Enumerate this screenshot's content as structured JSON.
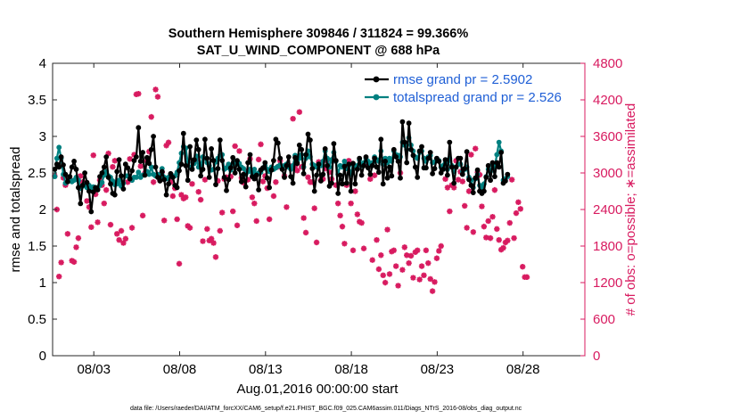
{
  "chart_data": {
    "type": "line",
    "title_line1": "Southern Hemisphere 309846 / 311824 = 99.366%",
    "title_line2": "SAT_U_WIND_COMPONENT @ 688 hPa",
    "xlabel": "Aug.01,2016 00:00:00 start",
    "ylabel_left": "rmse and totalspread",
    "ylabel_right": "# of obs: o=possible; ∗=assimilated",
    "footer": "data file: /Users/raeder/DAI/ATM_forcXX/CAM6_setup/f.e21.FHIST_BGC.f09_025.CAM6assim.011/Diags_NTrS_2016-08/obs_diag_output.nc",
    "x_range_days": [
      0.6,
      31.6
    ],
    "x_ticks": [
      {
        "day": 3,
        "label": "08/03"
      },
      {
        "day": 8,
        "label": "08/08"
      },
      {
        "day": 13,
        "label": "08/13"
      },
      {
        "day": 18,
        "label": "08/18"
      },
      {
        "day": 23,
        "label": "08/23"
      },
      {
        "day": 28,
        "label": "08/28"
      }
    ],
    "y_left_range": [
      0,
      4
    ],
    "y_left_ticks": [
      "0",
      "0.5",
      "1",
      "1.5",
      "2",
      "2.5",
      "3",
      "3.5",
      "4"
    ],
    "y_right_range": [
      0,
      4800
    ],
    "y_right_ticks": [
      "0",
      "600",
      "1200",
      "1800",
      "2400",
      "3000",
      "3600",
      "4200",
      "4800"
    ],
    "colors": {
      "rmse": "#000000",
      "totalspread": "#008080",
      "obs": "#d81b60",
      "legend_text": "#1f5fd6"
    },
    "legend": {
      "position": "top-right",
      "rmse_label": "rmse grand pr = 2.5902",
      "spread_label": "totalspread grand pr = 2.526"
    },
    "series": [
      {
        "name": "rmse",
        "values": [
          2.55,
          2.62,
          2.58,
          2.72,
          2.61,
          2.48,
          2.38,
          2.45,
          2.58,
          2.66,
          2.55,
          2.3,
          2.08,
          2.33,
          2.5,
          2.37,
          2.25,
          1.97,
          2.24,
          2.3,
          2.27,
          2.45,
          2.5,
          2.58,
          2.72,
          2.44,
          2.35,
          2.22,
          2.2,
          2.52,
          2.68,
          2.46,
          2.28,
          2.62,
          2.57,
          2.42,
          2.53,
          2.67,
          2.72,
          3.12,
          2.66,
          2.78,
          2.47,
          2.71,
          2.63,
          2.82,
          3.0,
          2.58,
          2.44,
          2.39,
          2.52,
          2.41,
          2.2,
          2.35,
          2.49,
          2.44,
          2.33,
          2.3,
          2.53,
          2.62,
          3.04,
          2.6,
          2.4,
          2.86,
          2.55,
          2.68,
          2.95,
          2.82,
          2.46,
          2.55,
          2.96,
          2.7,
          2.44,
          2.83,
          2.67,
          2.34,
          2.56,
          2.95,
          2.67,
          2.44,
          2.26,
          2.41,
          2.57,
          2.71,
          2.5,
          2.67,
          2.55,
          2.38,
          2.48,
          2.31,
          2.64,
          2.75,
          2.45,
          2.42,
          2.47,
          2.27,
          2.54,
          2.57,
          2.64,
          2.43,
          2.3,
          2.54,
          2.67,
          2.96,
          2.91,
          2.7,
          2.55,
          2.44,
          2.6,
          2.72,
          2.45,
          2.36,
          2.71,
          2.63,
          2.88,
          2.82,
          2.49,
          2.75,
          3.03,
          2.95,
          2.56,
          2.25,
          2.47,
          2.62,
          2.39,
          2.48,
          2.83,
          2.6,
          2.32,
          2.36,
          2.9,
          2.67,
          2.22,
          2.47,
          2.35,
          2.59,
          2.36,
          2.62,
          2.25,
          2.63,
          2.35,
          2.55,
          2.7,
          2.47,
          2.6,
          2.72,
          2.57,
          2.48,
          2.6,
          2.7,
          2.58,
          2.51,
          2.96,
          2.35,
          2.66,
          2.43,
          2.58,
          2.46,
          2.82,
          2.72,
          2.66,
          2.43,
          3.2,
          2.92,
          2.64,
          3.18,
          2.82,
          2.74,
          2.58,
          2.44,
          2.8,
          2.86,
          2.57,
          2.57,
          2.7,
          2.78,
          2.49,
          2.56,
          2.7,
          2.66,
          2.5,
          2.55,
          2.68,
          2.47,
          2.92,
          2.58,
          2.36,
          2.58,
          2.7,
          2.7,
          2.48,
          2.56,
          2.79,
          2.41,
          2.33,
          2.23,
          2.43,
          2.54,
          2.25,
          2.22,
          2.25,
          2.44,
          2.6,
          2.4,
          2.64,
          2.45,
          2.64,
          2.58,
          2.78,
          2.36,
          2.39,
          2.48
        ]
      },
      {
        "name": "totalspread",
        "values": [
          2.45,
          2.7,
          2.85,
          2.7,
          2.48,
          2.36,
          2.38,
          2.4,
          2.38,
          2.4,
          2.44,
          2.4,
          2.29,
          2.32,
          2.34,
          2.3,
          2.33,
          2.28,
          2.31,
          2.3,
          2.29,
          2.33,
          2.37,
          2.47,
          2.52,
          2.46,
          2.44,
          2.39,
          2.34,
          2.35,
          2.4,
          2.32,
          2.36,
          2.46,
          2.46,
          2.43,
          2.4,
          2.44,
          2.44,
          2.51,
          2.44,
          2.47,
          2.48,
          2.52,
          2.48,
          2.58,
          2.48,
          2.46,
          2.48,
          2.43,
          2.56,
          2.44,
          2.42,
          2.44,
          2.47,
          2.46,
          2.46,
          2.51,
          2.64,
          2.77,
          2.86,
          2.84,
          2.64,
          2.58,
          2.56,
          2.63,
          2.73,
          2.58,
          2.6,
          2.72,
          2.7,
          2.64,
          2.6,
          2.54,
          2.55,
          2.65,
          2.7,
          2.74,
          2.75,
          2.55,
          2.57,
          2.62,
          2.54,
          2.62,
          2.66,
          2.62,
          2.63,
          2.58,
          2.56,
          2.48,
          2.52,
          2.55,
          2.5,
          2.55,
          2.48,
          2.5,
          2.51,
          2.56,
          2.6,
          2.55,
          2.52,
          2.58,
          2.55,
          2.57,
          2.59,
          2.61,
          2.58,
          2.6,
          2.62,
          2.58,
          2.55,
          2.6,
          2.74,
          2.65,
          2.7,
          2.75,
          2.58,
          2.7,
          2.8,
          2.72,
          2.62,
          2.6,
          2.58,
          2.62,
          2.6,
          2.66,
          2.8,
          2.7,
          2.58,
          2.68,
          2.78,
          2.66,
          2.48,
          2.6,
          2.58,
          2.66,
          2.56,
          2.6,
          2.48,
          2.62,
          2.58,
          2.6,
          2.68,
          2.6,
          2.64,
          2.7,
          2.66,
          2.62,
          2.64,
          2.72,
          2.68,
          2.66,
          2.8,
          2.62,
          2.7,
          2.64,
          2.7,
          2.66,
          2.8,
          2.75,
          2.74,
          2.72,
          2.92,
          2.88,
          2.82,
          2.98,
          2.88,
          2.8,
          2.72,
          2.7,
          2.78,
          2.8,
          2.7,
          2.66,
          2.72,
          2.74,
          2.64,
          2.65,
          2.68,
          2.67,
          2.58,
          2.6,
          2.64,
          2.55,
          2.7,
          2.6,
          2.52,
          2.58,
          2.62,
          2.62,
          2.52,
          2.55,
          2.58,
          2.44,
          2.4,
          2.3,
          2.42,
          2.48,
          2.33,
          2.3,
          2.35,
          2.45,
          2.55,
          2.52,
          2.62,
          2.58,
          2.75,
          2.92,
          2.8,
          2.4,
          2.42,
          2.45
        ]
      },
      {
        "name": "obs_assimilated",
        "values": [
          2950,
          2400,
          1300,
          1530,
          2920,
          2800,
          2000,
          2900,
          1560,
          1540,
          1780,
          1930,
          2950,
          2850,
          2830,
          2540,
          2440,
          2110,
          3290,
          2650,
          2190,
          2880,
          2800,
          2500,
          2720,
          3320,
          2150,
          3100,
          3200,
          2000,
          1900,
          2050,
          1850,
          1920,
          2850,
          3230,
          2100,
          3300,
          4290,
          4300,
          3110,
          2300,
          3000,
          3200,
          3350,
          3920,
          2850,
          4370,
          4250,
          2880,
          3010,
          2220,
          3450,
          3500,
          2850,
          2620,
          2750,
          2240,
          1510,
          2640,
          2580,
          2600,
          2130,
          2100,
          2820,
          3200,
          3220,
          2690,
          2560,
          1880,
          2890,
          2080,
          1890,
          1920,
          1850,
          1620,
          2870,
          2050,
          2350,
          2900,
          2930,
          3130,
          2940,
          2370,
          3440,
          2140,
          3360,
          2920,
          2840,
          3030,
          2890,
          3230,
          2600,
          2500,
          2210,
          3220,
          3470,
          2860,
          2950,
          2750,
          2240,
          3060,
          2620,
          2850,
          3100,
          3200,
          3110,
          2950,
          2440,
          3100,
          3110,
          3890,
          3110,
          3040,
          4000,
          3100,
          2260,
          2020,
          2930,
          2850,
          2850,
          2420,
          1860,
          3180,
          2880,
          2900,
          3070,
          3200,
          3010,
          2900,
          3200,
          2800,
          2500,
          2300,
          2120,
          1840,
          2800,
          3200,
          2500,
          1730,
          2700,
          2320,
          2200,
          2180,
          1760,
          3150,
          3120,
          2900,
          1570,
          2960,
          1900,
          1420,
          1650,
          1320,
          1200,
          2070,
          1340,
          1710,
          1730,
          1470,
          1150,
          3000,
          1410,
          1780,
          1650,
          1520,
          1640,
          1280,
          1700,
          1730,
          1250,
          1470,
          1320,
          1730,
          1520,
          1260,
          1060,
          1210,
          1600,
          1720,
          1800,
          3100,
          2900,
          2760,
          2370,
          2800,
          2760,
          3200,
          2890,
          3020,
          2860,
          2460,
          2100,
          2700,
          3300,
          2030,
          3400,
          3010,
          2970,
          2450,
          2120,
          1940,
          2210,
          1930,
          2280,
          2720,
          2080,
          1900,
          1740,
          1770,
          1860,
          1890,
          2180,
          2890,
          1930,
          2340,
          2520,
          2410,
          1460,
          1290,
          1290
        ]
      }
    ]
  }
}
